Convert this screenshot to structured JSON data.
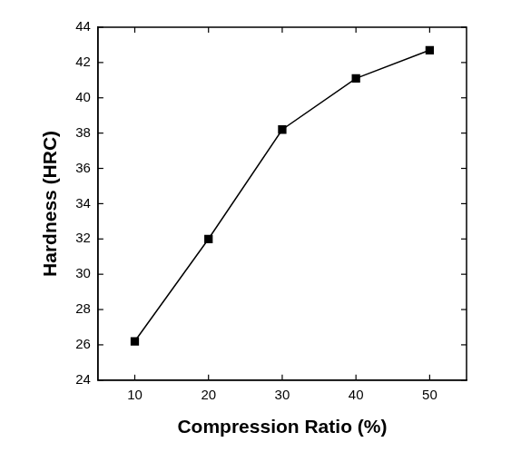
{
  "chart_data": {
    "type": "line",
    "x_label": "Compression Ratio (%)",
    "y_label": "Hardness (HRC)",
    "x": [
      10,
      20,
      30,
      40,
      50
    ],
    "values": [
      26.2,
      32.0,
      38.2,
      41.1,
      42.7
    ],
    "color": "#000000",
    "marker": "square",
    "line_style": "solid",
    "xlim": [
      5,
      55
    ],
    "xticks": [
      10,
      20,
      30,
      40,
      50
    ],
    "ylim": [
      24,
      44
    ],
    "yticks": [
      24,
      26,
      28,
      30,
      32,
      34,
      36,
      38,
      40,
      42,
      44
    ],
    "grid": false
  }
}
